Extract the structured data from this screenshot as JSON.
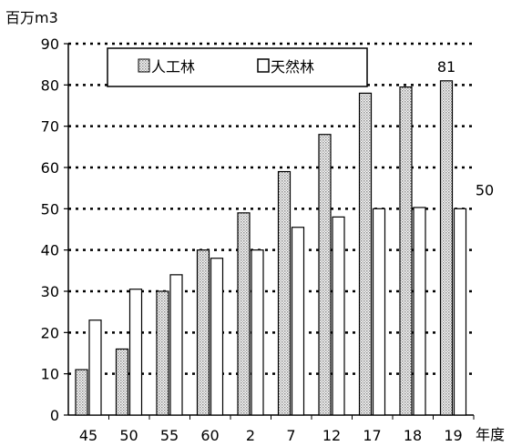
{
  "chart_data": {
    "type": "bar",
    "ylabel": "百万m3",
    "xlabel": "年度",
    "ylim": [
      0,
      90
    ],
    "yticks": [
      0,
      10,
      20,
      30,
      40,
      50,
      60,
      70,
      80,
      90
    ],
    "grid": "horizontal dotted",
    "legend_position": "top",
    "categories": [
      "45",
      "50",
      "55",
      "60",
      "2",
      "7",
      "12",
      "17",
      "18",
      "19"
    ],
    "series": [
      {
        "name": "人工林",
        "pattern": "dotted-gray",
        "values": [
          11,
          16,
          30,
          40,
          49,
          59,
          68,
          78,
          79.5,
          81
        ]
      },
      {
        "name": "天然林",
        "pattern": "white",
        "values": [
          23,
          30.5,
          34,
          38,
          40,
          45.5,
          48,
          50,
          50.3,
          50
        ]
      }
    ],
    "annotations": [
      {
        "series": 0,
        "index": 9,
        "text": "81"
      },
      {
        "series": 1,
        "index": 9,
        "text": "50"
      }
    ],
    "colors": {
      "bar_stroke": "#000000",
      "pattern_fill": "#9a9a9a",
      "background": "#ffffff"
    }
  }
}
